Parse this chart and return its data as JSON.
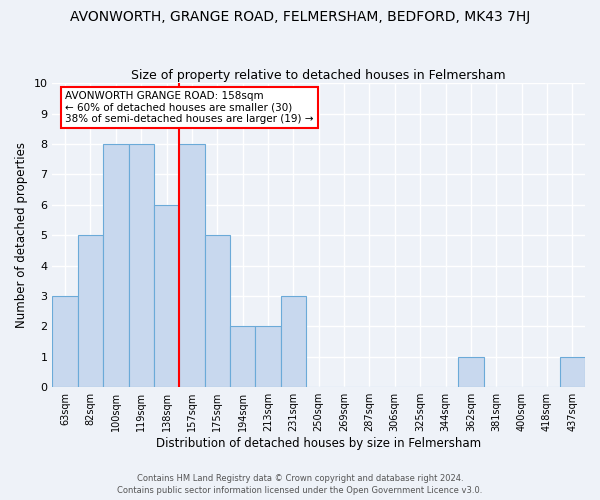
{
  "title": "AVONWORTH, GRANGE ROAD, FELMERSHAM, BEDFORD, MK43 7HJ",
  "subtitle": "Size of property relative to detached houses in Felmersham",
  "xlabel": "Distribution of detached houses by size in Felmersham",
  "ylabel": "Number of detached properties",
  "bar_color": "#c8d8ee",
  "bar_edge_color": "#6baad8",
  "categories": [
    "63sqm",
    "82sqm",
    "100sqm",
    "119sqm",
    "138sqm",
    "157sqm",
    "175sqm",
    "194sqm",
    "213sqm",
    "231sqm",
    "250sqm",
    "269sqm",
    "287sqm",
    "306sqm",
    "325sqm",
    "344sqm",
    "362sqm",
    "381sqm",
    "400sqm",
    "418sqm",
    "437sqm"
  ],
  "values": [
    3,
    5,
    8,
    8,
    6,
    8,
    5,
    2,
    2,
    3,
    0,
    0,
    0,
    0,
    0,
    0,
    1,
    0,
    0,
    0,
    1
  ],
  "red_line_x": 4.5,
  "ylim": [
    0,
    10
  ],
  "yticks": [
    0,
    1,
    2,
    3,
    4,
    5,
    6,
    7,
    8,
    9,
    10
  ],
  "annotation_title": "AVONWORTH GRANGE ROAD: 158sqm",
  "annotation_line1": "← 60% of detached houses are smaller (30)",
  "annotation_line2": "38% of semi-detached houses are larger (19) →",
  "footnote1": "Contains HM Land Registry data © Crown copyright and database right 2024.",
  "footnote2": "Contains public sector information licensed under the Open Government Licence v3.0.",
  "background_color": "#eef2f8",
  "grid_color": "#ffffff",
  "title_fontsize": 10,
  "subtitle_fontsize": 9
}
